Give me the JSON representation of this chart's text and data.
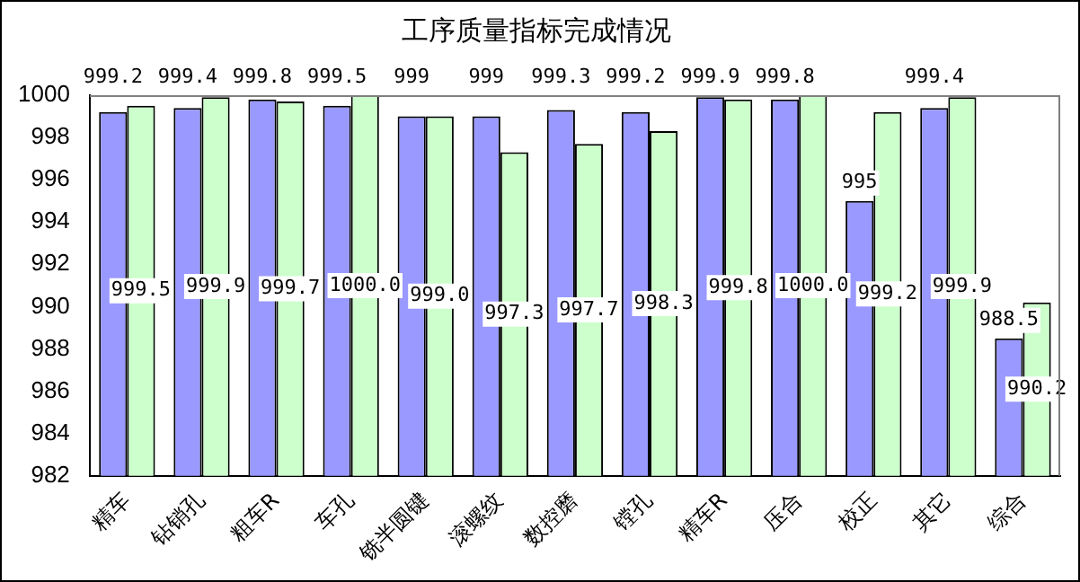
{
  "chart_data": {
    "type": "bar",
    "title": "工序质量指标完成情况",
    "categories": [
      "精车",
      "钻销孔",
      "粗车R",
      "车孔",
      "铣半圆键",
      "滚螺纹",
      "数控磨",
      "镗孔",
      "精车R",
      "压合",
      "校正",
      "其它",
      "综合"
    ],
    "series": [
      {
        "color": "#9999ff",
        "values": [
          999.2,
          999.4,
          999.8,
          999.5,
          999,
          999,
          999.3,
          999.2,
          999.9,
          999.8,
          995,
          999.4,
          988.5
        ],
        "value_labels": [
          "999.2",
          "999.4",
          "999.8",
          "999.5",
          "999",
          "999",
          "999.3",
          "999.2",
          "999.9",
          "999.8",
          "995",
          "999.4",
          "988.5"
        ]
      },
      {
        "color": "#ccffcc",
        "values": [
          999.5,
          999.9,
          999.7,
          1000.0,
          999.0,
          997.3,
          997.7,
          998.3,
          999.8,
          1000.0,
          999.2,
          999.9,
          990.2
        ],
        "value_labels": [
          "999.5",
          "999.9",
          "999.7",
          "1000.0",
          "999.0",
          "997.3",
          "997.7",
          "998.3",
          "999.8",
          "1000.0",
          "999.2",
          "999.9",
          "990.2"
        ]
      }
    ],
    "ylim": [
      982,
      1000
    ],
    "yticks": [
      982,
      984,
      986,
      988,
      990,
      992,
      994,
      996,
      998,
      1000
    ],
    "grid": false,
    "legend": false
  }
}
